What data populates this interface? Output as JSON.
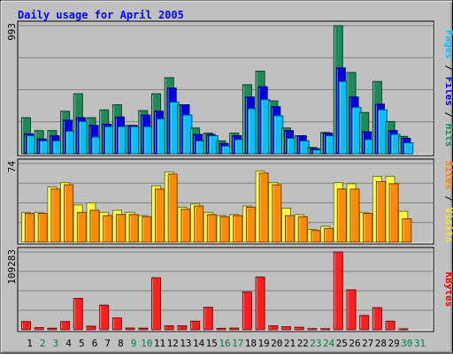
{
  "chart_data": [
    {
      "type": "bar",
      "title": "Daily usage for April 2005",
      "ymax_label": "993",
      "side_label": [
        {
          "text": "Pages",
          "color": "#00c0ff"
        },
        {
          "text": " / ",
          "color": "#000000"
        },
        {
          "text": "Files",
          "color": "#0000e0"
        },
        {
          "text": " / ",
          "color": "#000000"
        },
        {
          "text": "Hits",
          "color": "#1e8a5a"
        }
      ],
      "ylim": [
        0,
        993
      ],
      "grid": true,
      "categories": [
        "1",
        "2",
        "3",
        "4",
        "5",
        "6",
        "7",
        "8",
        "9",
        "10",
        "11",
        "12",
        "13",
        "14",
        "15",
        "16",
        "17",
        "18",
        "19",
        "20",
        "21",
        "22",
        "23",
        "24",
        "25",
        "26",
        "27",
        "28",
        "29",
        "30",
        "31"
      ],
      "series": [
        {
          "name": "Hits",
          "color": "#1e8a5a",
          "values": [
            280,
            180,
            180,
            330,
            465,
            280,
            340,
            380,
            220,
            335,
            465,
            590,
            380,
            200,
            160,
            100,
            160,
            535,
            640,
            410,
            200,
            140,
            50,
            165,
            993,
            630,
            320,
            560,
            250,
            135,
            0
          ]
        },
        {
          "name": "Files",
          "color": "#0000e0",
          "values": [
            155,
            115,
            140,
            260,
            280,
            220,
            230,
            285,
            220,
            300,
            330,
            510,
            380,
            150,
            150,
            80,
            140,
            440,
            520,
            365,
            180,
            140,
            40,
            160,
            665,
            440,
            170,
            385,
            180,
            120,
            0
          ]
        },
        {
          "name": "Pages",
          "color": "#00c0ff",
          "values": [
            140,
            100,
            100,
            175,
            250,
            130,
            210,
            210,
            210,
            210,
            270,
            400,
            300,
            100,
            140,
            60,
            110,
            350,
            420,
            295,
            120,
            100,
            30,
            140,
            560,
            360,
            110,
            340,
            150,
            85,
            0
          ]
        }
      ]
    },
    {
      "type": "bar",
      "ymax_label": "74",
      "side_label": [
        {
          "text": "Sites",
          "color": "#ff8000"
        },
        {
          "text": " / ",
          "color": "#000000"
        },
        {
          "text": "Visits",
          "color": "#f8e030"
        }
      ],
      "ylim": [
        0,
        74
      ],
      "grid": true,
      "series": [
        {
          "name": "Visits",
          "color": "#ffff40",
          "values": [
            28,
            28,
            52,
            56,
            35,
            37,
            28,
            30,
            28,
            25,
            53,
            66,
            33,
            36,
            28,
            25,
            26,
            34,
            67,
            56,
            32,
            26,
            12,
            15,
            56,
            55,
            28,
            62,
            62,
            29,
            0
          ]
        },
        {
          "name": "Sites",
          "color": "#ff8c00",
          "values": [
            27,
            27,
            50,
            54,
            28,
            30,
            25,
            26,
            26,
            24,
            50,
            64,
            31,
            34,
            26,
            24,
            25,
            33,
            65,
            54,
            25,
            24,
            11,
            13,
            50,
            50,
            27,
            57,
            55,
            22,
            0
          ]
        }
      ]
    },
    {
      "type": "bar",
      "ymax_label": "109283",
      "side_label": [
        {
          "text": "KBytes",
          "color": "#ff0000"
        }
      ],
      "ylim": [
        0,
        109283
      ],
      "grid": true,
      "series": [
        {
          "name": "KBytes",
          "color": "#ff2020",
          "values": [
            11500,
            3000,
            2200,
            11500,
            44000,
            5000,
            34500,
            16500,
            2400,
            2200,
            73000,
            5500,
            5500,
            12000,
            31500,
            2000,
            2300,
            53000,
            74000,
            5500,
            4200,
            3500,
            1500,
            1500,
            109283,
            56000,
            20000,
            31000,
            12000,
            1000,
            0
          ]
        }
      ]
    }
  ],
  "weekend_days": [
    2,
    3,
    9,
    10,
    16,
    17,
    23,
    24,
    30,
    31
  ],
  "colors": {
    "background": "#c0c0c0",
    "frame": "#ffffff",
    "title": "#0000ff",
    "grid": "#808080",
    "weekday_label": "#000000",
    "weekend_label": "#008040"
  }
}
